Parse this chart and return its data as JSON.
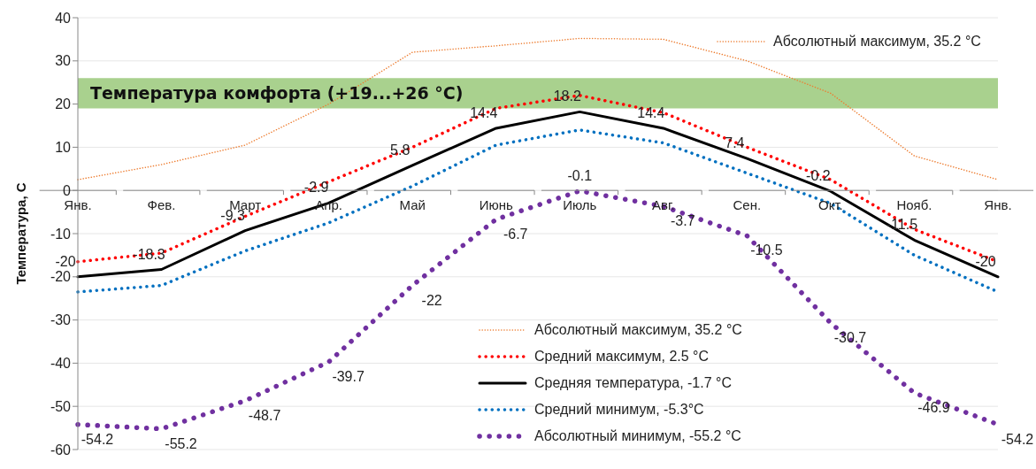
{
  "chart_data": {
    "type": "line",
    "ylabel": "Температура, C",
    "categories": [
      "Янв.",
      "Фев.",
      "Март",
      "Апр.",
      "Май",
      "Июнь",
      "Июль",
      "Авг.",
      "Сен.",
      "Окт.",
      "Нояб.",
      "Янв."
    ],
    "series": [
      {
        "name": "Абсолютный максимум, 35.2 °C",
        "color": "#ed7d31",
        "line_style": "dotted",
        "values": [
          2.5,
          6,
          10.5,
          20,
          32,
          33.5,
          35.2,
          35,
          30,
          22.5,
          8,
          2.5
        ]
      },
      {
        "name": "Средний максимум, 2.5 °C",
        "color": "#ff0000",
        "line_style": "dotted",
        "values": [
          -16.5,
          -14.5,
          -6,
          2,
          10,
          19,
          22,
          18,
          10,
          2.5,
          -9,
          -16.5
        ]
      },
      {
        "name": "Средняя температура, -1.7 °C",
        "color": "#000000",
        "line_style": "solid",
        "values": [
          -20,
          -18.3,
          -9.3,
          -2.9,
          5.8,
          14.4,
          18.2,
          14.4,
          7.4,
          -0.2,
          -11.5,
          -20
        ],
        "value_labels": [
          "-20",
          "-18.3",
          "-9.3",
          "-2.9",
          "5.8",
          "14.4",
          "18.2",
          "14.4",
          "7.4",
          "-0.2",
          "-11.5",
          "-20"
        ]
      },
      {
        "name": "Средний минимум, -5.3°C",
        "color": "#0070c0",
        "line_style": "dotted",
        "values": [
          -23.5,
          -22,
          -14,
          -7.5,
          1,
          10.5,
          14,
          11,
          4,
          -3,
          -15,
          -23.5
        ]
      },
      {
        "name": "Абсолютный минимум, -55.2 °C",
        "color": "#7030a0",
        "line_style": "dotted",
        "values": [
          -54.2,
          -55.2,
          -48.7,
          -39.7,
          -22,
          -6.7,
          -0.1,
          -3.7,
          -10.5,
          -30.7,
          -46.9,
          -54.2
        ],
        "value_labels": [
          "-54.2",
          "-55.2",
          "-48.7",
          "-39.7",
          "-22",
          "-6.7",
          "-0.1",
          "-3.7",
          "-10.5",
          "-30.7",
          "-46.9",
          "-54.2"
        ]
      }
    ],
    "ylim": [
      -60,
      40
    ],
    "yticks": [
      -60,
      -50,
      -40,
      -30,
      -20,
      -10,
      0,
      10,
      20,
      30,
      40
    ],
    "bands": [
      {
        "axis": "y",
        "from": 19,
        "to": 26,
        "label": "Температура комфорта (+19...+26 °C)",
        "color": "#a9d18e"
      }
    ],
    "annotations": [
      "Абсолютный максимум, 35.2 °C"
    ],
    "grid": "y",
    "legend": "bottom",
    "marker": "none"
  }
}
